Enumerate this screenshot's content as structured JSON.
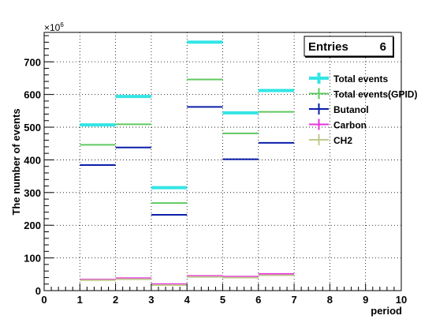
{
  "chart_data": {
    "type": "step",
    "xlabel": "period",
    "ylabel": "The number of events",
    "y_exponent_label": "×10",
    "y_exponent_power": "6",
    "xlim": [
      0,
      10
    ],
    "ylim": [
      0,
      790
    ],
    "grid": true,
    "stats_box": {
      "label": "Entries",
      "value": "6"
    },
    "x_ticks": [
      "0",
      "1",
      "2",
      "3",
      "4",
      "5",
      "6",
      "7",
      "8",
      "9",
      "10"
    ],
    "y_ticks": [
      "0",
      "100",
      "200",
      "300",
      "400",
      "500",
      "600",
      "700"
    ],
    "legend_position": "right",
    "series": [
      {
        "name": "Total events",
        "color": "#33e5e5",
        "line_width": 4,
        "x": [
          [
            1,
            2
          ],
          [
            2,
            3
          ],
          [
            3,
            4
          ],
          [
            4,
            5
          ],
          [
            5,
            6
          ],
          [
            6,
            7
          ]
        ],
        "values": [
          507,
          594,
          315,
          760,
          544,
          612
        ]
      },
      {
        "name": "Total events(GPID)",
        "color": "#5fc95f",
        "line_width": 2,
        "x": [
          [
            1,
            2
          ],
          [
            2,
            3
          ],
          [
            3,
            4
          ],
          [
            4,
            5
          ],
          [
            5,
            6
          ],
          [
            6,
            7
          ]
        ],
        "values": [
          446,
          509,
          268,
          646,
          481,
          547
        ]
      },
      {
        "name": "Butanol",
        "color": "#0b1ea8",
        "line_width": 2,
        "x": [
          [
            1,
            2
          ],
          [
            2,
            3
          ],
          [
            3,
            4
          ],
          [
            4,
            5
          ],
          [
            5,
            6
          ],
          [
            6,
            7
          ]
        ],
        "values": [
          384,
          438,
          232,
          562,
          402,
          452
        ]
      },
      {
        "name": "Carbon",
        "color": "#e833e0",
        "line_width": 2,
        "x": [
          [
            1,
            2
          ],
          [
            2,
            3
          ],
          [
            3,
            4
          ],
          [
            4,
            5
          ],
          [
            5,
            6
          ],
          [
            6,
            7
          ]
        ],
        "values": [
          34,
          38,
          20,
          45,
          43,
          51
        ]
      },
      {
        "name": "CH2",
        "color": "#c2c98d",
        "line_width": 2,
        "x": [
          [
            1,
            2
          ],
          [
            2,
            3
          ],
          [
            3,
            4
          ],
          [
            4,
            5
          ],
          [
            5,
            6
          ],
          [
            6,
            7
          ]
        ],
        "values": [
          32,
          35,
          17,
          42,
          40,
          47
        ]
      }
    ]
  }
}
